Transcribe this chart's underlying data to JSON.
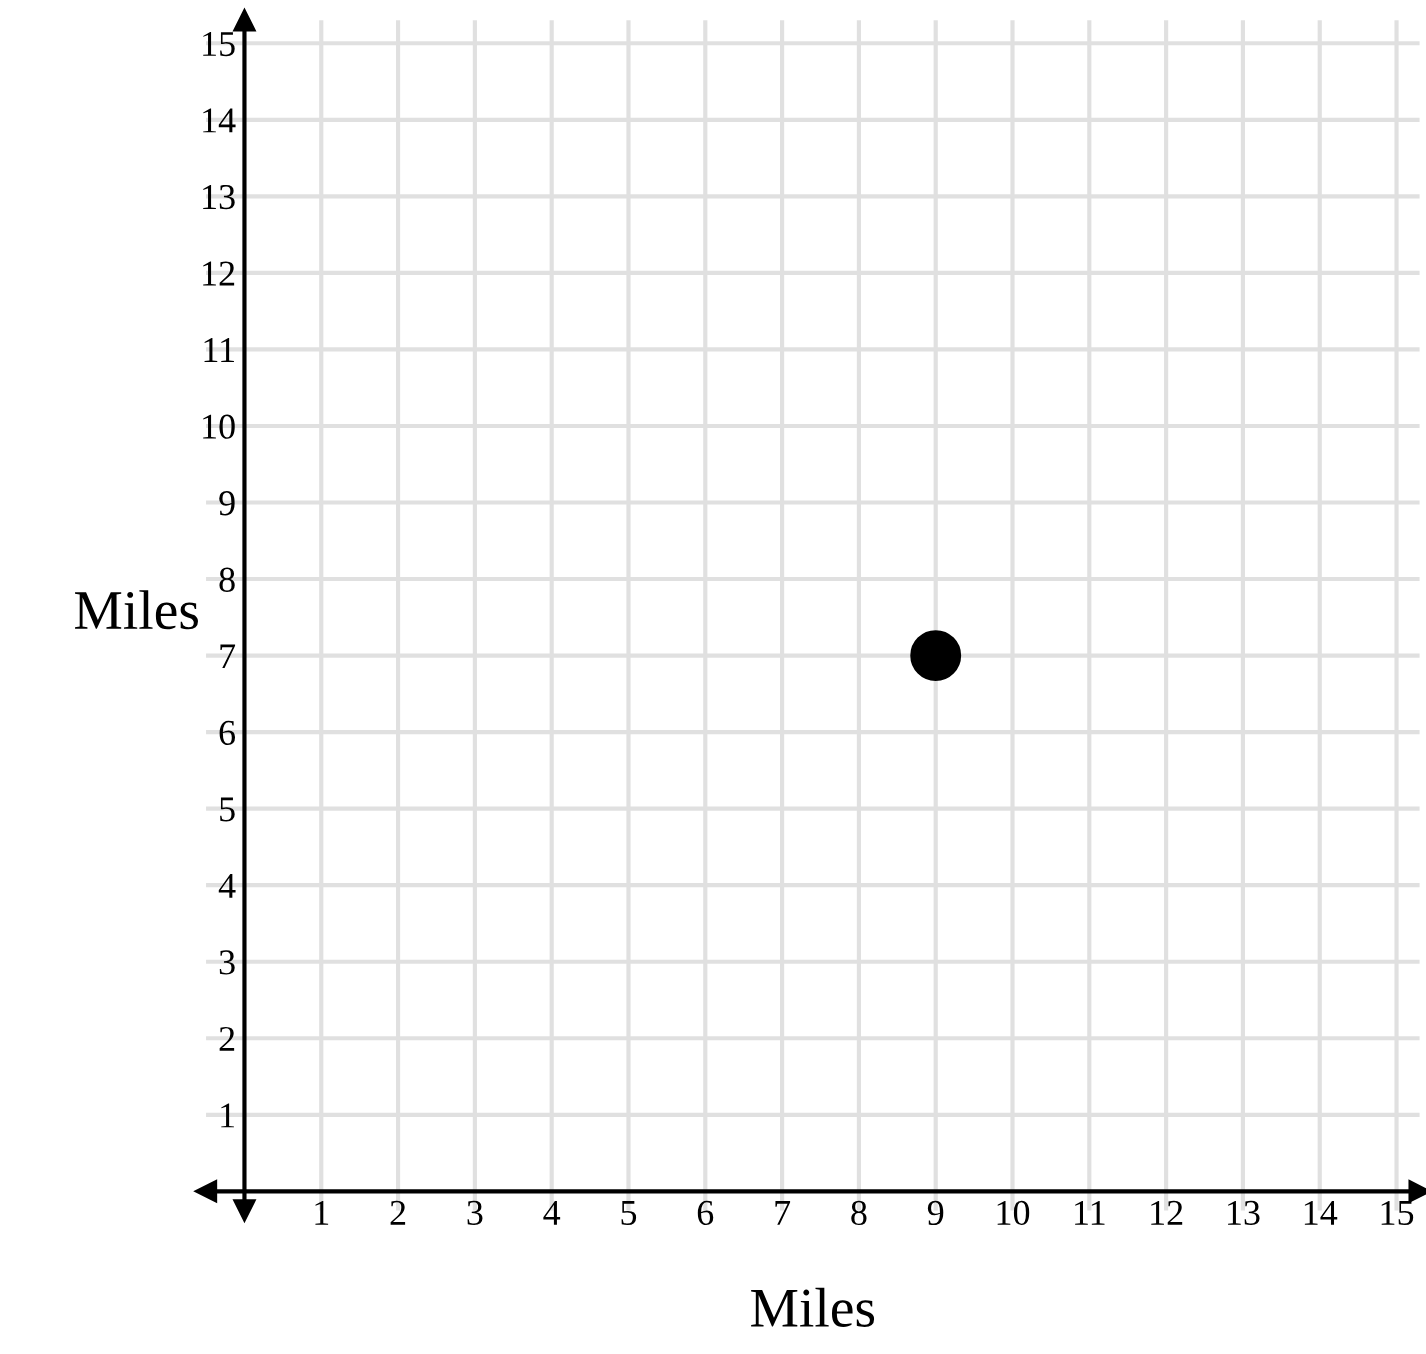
{
  "chart_data": {
    "type": "scatter",
    "xlabel": "Miles",
    "ylabel": "Miles",
    "x": [
      9
    ],
    "values": [
      7
    ],
    "color": "#000000",
    "marker": "circle",
    "xlim": [
      -0.5,
      15.3
    ],
    "ylim": [
      -0.25,
      15.3
    ],
    "xticks": [
      1,
      2,
      3,
      4,
      5,
      6,
      7,
      8,
      9,
      10,
      11,
      12,
      13,
      14,
      15
    ],
    "yticks": [
      1,
      2,
      3,
      4,
      5,
      6,
      7,
      8,
      9,
      10,
      11,
      12,
      13,
      14,
      15
    ],
    "grid": true,
    "legend": false
  }
}
